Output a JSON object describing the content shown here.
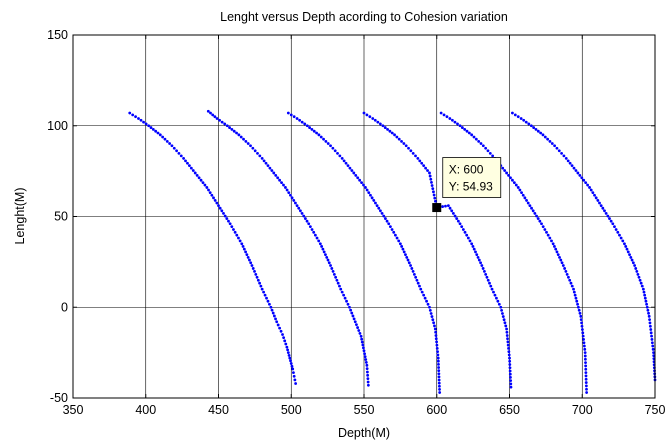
{
  "chart_data": {
    "type": "scatter",
    "title": "Lenght versus Depth acording to Cohesion variation",
    "xlabel": "Depth(M)",
    "ylabel": "Lenght(M)",
    "xlim": [
      350,
      750
    ],
    "ylim": [
      -50,
      150
    ],
    "xticks": [
      350,
      400,
      450,
      500,
      550,
      600,
      650,
      700,
      750
    ],
    "yticks": [
      -50,
      0,
      50,
      100,
      150
    ],
    "grid": true,
    "marker_color": "#0000ff",
    "series": [
      {
        "x": [
          389,
          395,
          402,
          410,
          418,
          426,
          434,
          442,
          450,
          458,
          466,
          473,
          480,
          486,
          490,
          494,
          497,
          499,
          501,
          502,
          503
        ],
        "y": [
          107,
          104,
          100,
          95,
          89,
          82,
          74,
          66,
          56,
          46,
          35,
          23,
          10,
          0,
          -8,
          -15,
          -22,
          -28,
          -34,
          -38,
          -42
        ]
      },
      {
        "x": [
          443,
          449,
          456,
          464,
          472,
          480,
          488,
          496,
          504,
          512,
          520,
          527,
          534,
          540,
          544,
          548,
          550,
          552,
          553
        ],
        "y": [
          108,
          104,
          100,
          95,
          89,
          82,
          74,
          66,
          56,
          46,
          35,
          23,
          10,
          0,
          -8,
          -16,
          -24,
          -32,
          -43
        ]
      },
      {
        "x": [
          498,
          504,
          511,
          519,
          527,
          535,
          543,
          551,
          559,
          567,
          575,
          582,
          589,
          595,
          599,
          601,
          602
        ],
        "y": [
          107,
          104,
          100,
          95,
          89,
          82,
          74,
          66,
          56,
          46,
          35,
          23,
          10,
          0,
          -12,
          -28,
          -47
        ]
      },
      {
        "x": [
          550,
          556,
          563,
          571,
          579,
          587,
          595,
          600,
          608,
          616,
          624,
          631,
          638,
          644,
          648,
          650,
          651
        ],
        "y": [
          107,
          104,
          100,
          95,
          89,
          82,
          74,
          54.93,
          56,
          46,
          35,
          23,
          10,
          0,
          -12,
          -28,
          -44
        ]
      },
      {
        "x": [
          603,
          609,
          616,
          624,
          632,
          640,
          648,
          656,
          664,
          672,
          680,
          687,
          694,
          699,
          702,
          703
        ],
        "y": [
          107,
          104,
          100,
          95,
          89,
          82,
          74,
          66,
          56,
          46,
          35,
          23,
          10,
          -5,
          -25,
          -47
        ]
      },
      {
        "x": [
          652,
          658,
          665,
          673,
          681,
          689,
          697,
          705,
          713,
          721,
          729,
          736,
          742,
          746,
          749,
          750
        ],
        "y": [
          107,
          104,
          100,
          95,
          89,
          82,
          74,
          66,
          56,
          46,
          35,
          23,
          10,
          -5,
          -25,
          -40
        ]
      }
    ],
    "datatip": {
      "line1": "X: 600",
      "line2": "Y: 54.93",
      "x": 600,
      "y": 54.93
    }
  }
}
